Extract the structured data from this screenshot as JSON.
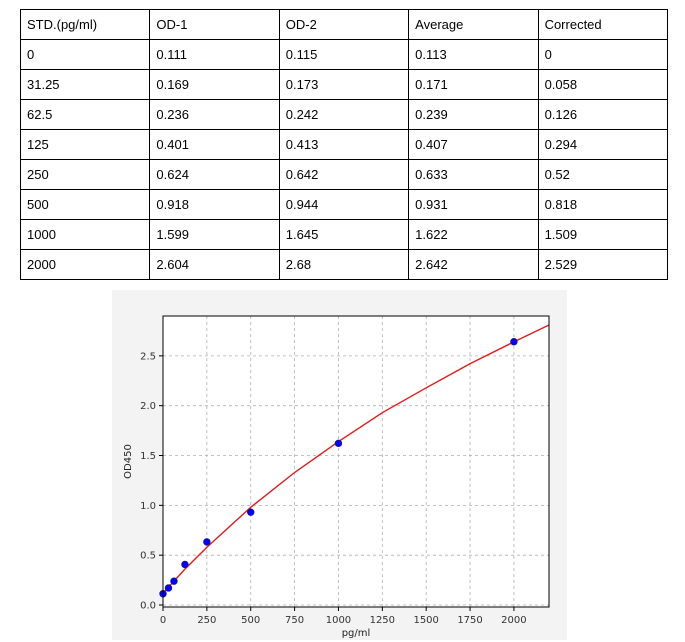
{
  "table": {
    "headers": [
      "STD.(pg/ml)",
      "OD-1",
      "OD-2",
      "Average",
      "Corrected"
    ],
    "rows": [
      [
        "0",
        "0.111",
        "0.115",
        "0.113",
        "0"
      ],
      [
        "31.25",
        "0.169",
        "0.173",
        "0.171",
        "0.058"
      ],
      [
        "62.5",
        "0.236",
        "0.242",
        "0.239",
        "0.126"
      ],
      [
        "125",
        "0.401",
        "0.413",
        "0.407",
        "0.294"
      ],
      [
        "250",
        "0.624",
        "0.642",
        "0.633",
        "0.52"
      ],
      [
        "500",
        "0.918",
        "0.944",
        "0.931",
        "0.818"
      ],
      [
        "1000",
        "1.599",
        "1.645",
        "1.622",
        "1.509"
      ],
      [
        "2000",
        "2.604",
        "2.68",
        "2.642",
        "2.529"
      ]
    ]
  },
  "chart_data": {
    "type": "scatter",
    "title": "",
    "xlabel": "pg/ml",
    "ylabel": "OD450",
    "xlim": [
      0,
      2200
    ],
    "ylim": [
      -0.02,
      2.9
    ],
    "x_ticks": [
      0,
      250,
      500,
      750,
      1000,
      1250,
      1500,
      1750,
      2000
    ],
    "x_tick_labels": [
      "0",
      "250",
      "500",
      "750",
      "1000",
      "1250",
      "1500",
      "1750",
      "2000"
    ],
    "y_ticks": [
      0.0,
      0.5,
      1.0,
      1.5,
      2.0,
      2.5
    ],
    "y_tick_labels": [
      "0.0",
      "0.5",
      "1.0",
      "1.5",
      "2.0",
      "2.5"
    ],
    "grid": true,
    "series": [
      {
        "type": "scatter",
        "color": "#0000ff",
        "x": [
          0,
          31.25,
          62.5,
          125,
          250,
          500,
          1000,
          2000
        ],
        "y": [
          0.113,
          0.171,
          0.239,
          0.407,
          0.633,
          0.931,
          1.622,
          2.642
        ]
      },
      {
        "type": "line",
        "color": "#e31a1c",
        "x": [
          0,
          31.25,
          62.5,
          125,
          250,
          500,
          750,
          1000,
          1250,
          1500,
          1750,
          2000,
          2200
        ],
        "y": [
          0.113,
          0.18,
          0.24,
          0.36,
          0.58,
          0.98,
          1.33,
          1.64,
          1.93,
          2.18,
          2.42,
          2.64,
          2.81
        ]
      }
    ]
  }
}
